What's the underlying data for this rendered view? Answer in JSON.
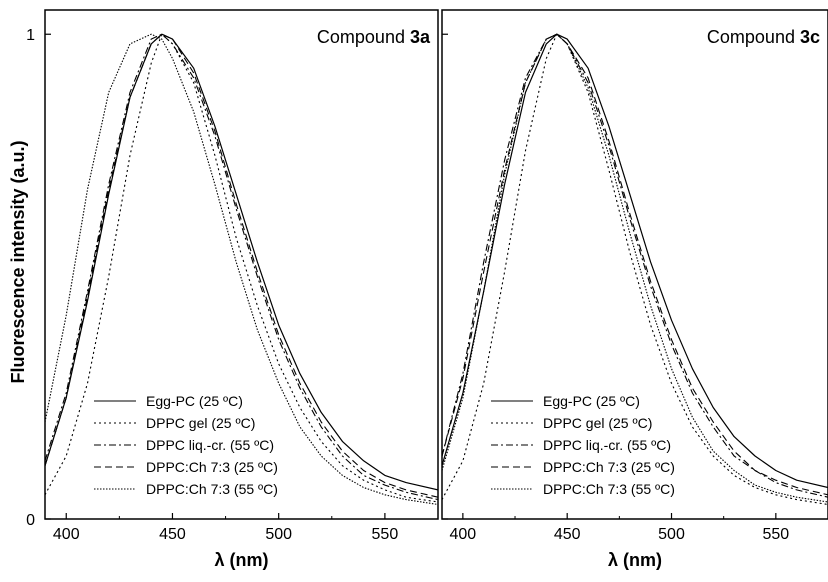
{
  "figure": {
    "ylabel": "Fluorescence intensity (a.u.)"
  },
  "chart_data": [
    {
      "type": "line",
      "title_prefix": "Compound ",
      "title_bold": "3a",
      "xlabel": "λ (nm)",
      "ylabel": "Fluorescence intensity (a.u.)",
      "xlim": [
        390,
        575
      ],
      "ylim": [
        0,
        1.05
      ],
      "xticks": [
        400,
        450,
        500,
        550
      ],
      "yticks": [
        0,
        1
      ],
      "legend_position": "bottom-left",
      "series": [
        {
          "name": "Egg-PC (25 ºC)",
          "style": "solid",
          "x": [
            390,
            400,
            410,
            420,
            430,
            440,
            445,
            450,
            460,
            470,
            480,
            490,
            500,
            510,
            520,
            530,
            540,
            550,
            560,
            575
          ],
          "y": [
            0.11,
            0.25,
            0.45,
            0.67,
            0.87,
            0.98,
            1.0,
            0.99,
            0.93,
            0.81,
            0.67,
            0.53,
            0.4,
            0.3,
            0.22,
            0.16,
            0.12,
            0.09,
            0.075,
            0.06
          ]
        },
        {
          "name": "DPPC gel (25 ºC)",
          "style": "dotted",
          "x": [
            390,
            400,
            410,
            420,
            430,
            440,
            445,
            450,
            460,
            470,
            480,
            490,
            500,
            510,
            520,
            530,
            540,
            550,
            560,
            575
          ],
          "y": [
            0.05,
            0.13,
            0.28,
            0.5,
            0.75,
            0.94,
            1.0,
            0.98,
            0.9,
            0.75,
            0.58,
            0.44,
            0.32,
            0.23,
            0.16,
            0.11,
            0.08,
            0.06,
            0.045,
            0.035
          ]
        },
        {
          "name": "DPPC liq.-cr. (55 ºC)",
          "style": "dashdot",
          "x": [
            390,
            400,
            410,
            420,
            430,
            440,
            445,
            450,
            460,
            470,
            480,
            490,
            500,
            510,
            520,
            530,
            540,
            550,
            560,
            575
          ],
          "y": [
            0.12,
            0.26,
            0.47,
            0.69,
            0.88,
            0.99,
            1.0,
            0.98,
            0.91,
            0.79,
            0.64,
            0.5,
            0.37,
            0.27,
            0.19,
            0.13,
            0.09,
            0.07,
            0.055,
            0.04
          ]
        },
        {
          "name": "DPPC:Ch 7:3 (25 ºC)",
          "style": "dashed",
          "x": [
            390,
            400,
            410,
            420,
            430,
            440,
            445,
            450,
            460,
            470,
            480,
            490,
            500,
            510,
            520,
            530,
            540,
            550,
            560,
            575
          ],
          "y": [
            0.11,
            0.25,
            0.46,
            0.68,
            0.87,
            0.98,
            1.0,
            0.99,
            0.92,
            0.8,
            0.65,
            0.51,
            0.38,
            0.28,
            0.2,
            0.14,
            0.1,
            0.075,
            0.06,
            0.045
          ]
        },
        {
          "name": "DPPC:Ch 7:3 (55 ºC)",
          "style": "finedot",
          "x": [
            390,
            400,
            410,
            420,
            430,
            440,
            445,
            450,
            460,
            470,
            480,
            490,
            500,
            510,
            520,
            530,
            540,
            550,
            560,
            575
          ],
          "y": [
            0.2,
            0.42,
            0.68,
            0.88,
            0.98,
            1.0,
            0.99,
            0.95,
            0.84,
            0.69,
            0.53,
            0.39,
            0.28,
            0.19,
            0.13,
            0.09,
            0.065,
            0.05,
            0.04,
            0.03
          ]
        }
      ]
    },
    {
      "type": "line",
      "title_prefix": "Compound ",
      "title_bold": "3c",
      "xlabel": "λ (nm)",
      "ylabel": "",
      "xlim": [
        390,
        575
      ],
      "ylim": [
        0,
        1.05
      ],
      "xticks": [
        400,
        450,
        500,
        550
      ],
      "yticks": [
        0,
        1
      ],
      "legend_position": "bottom-left",
      "series": [
        {
          "name": "Egg-PC (25 ºC)",
          "style": "solid",
          "x": [
            390,
            400,
            410,
            420,
            430,
            440,
            445,
            450,
            460,
            470,
            480,
            490,
            500,
            510,
            520,
            530,
            540,
            550,
            560,
            575
          ],
          "y": [
            0.11,
            0.26,
            0.47,
            0.69,
            0.88,
            0.98,
            1.0,
            0.99,
            0.93,
            0.81,
            0.67,
            0.53,
            0.41,
            0.31,
            0.23,
            0.17,
            0.13,
            0.1,
            0.08,
            0.065
          ]
        },
        {
          "name": "DPPC gel (25 ºC)",
          "style": "dotted",
          "x": [
            390,
            400,
            410,
            420,
            430,
            440,
            445,
            450,
            460,
            470,
            480,
            490,
            500,
            510,
            520,
            530,
            540,
            550,
            560,
            575
          ],
          "y": [
            0.04,
            0.12,
            0.28,
            0.51,
            0.76,
            0.95,
            1.0,
            0.98,
            0.88,
            0.72,
            0.55,
            0.4,
            0.28,
            0.19,
            0.13,
            0.09,
            0.065,
            0.05,
            0.04,
            0.03
          ]
        },
        {
          "name": "DPPC liq.-cr. (55 ºC)",
          "style": "dashdot",
          "x": [
            390,
            400,
            410,
            420,
            430,
            440,
            445,
            450,
            460,
            470,
            480,
            490,
            500,
            510,
            520,
            530,
            540,
            550,
            560,
            575
          ],
          "y": [
            0.13,
            0.3,
            0.53,
            0.74,
            0.91,
            0.99,
            1.0,
            0.98,
            0.9,
            0.77,
            0.62,
            0.48,
            0.36,
            0.26,
            0.19,
            0.13,
            0.1,
            0.075,
            0.06,
            0.045
          ]
        },
        {
          "name": "DPPC:Ch 7:3 (25 ºC)",
          "style": "dashed",
          "x": [
            390,
            400,
            410,
            420,
            430,
            440,
            445,
            450,
            460,
            470,
            480,
            490,
            500,
            510,
            520,
            530,
            540,
            550,
            560,
            575
          ],
          "y": [
            0.13,
            0.29,
            0.51,
            0.72,
            0.9,
            0.99,
            1.0,
            0.98,
            0.91,
            0.78,
            0.63,
            0.49,
            0.37,
            0.27,
            0.2,
            0.14,
            0.1,
            0.08,
            0.065,
            0.05
          ]
        },
        {
          "name": "DPPC:Ch 7:3 (55 ºC)",
          "style": "finedot",
          "x": [
            390,
            400,
            410,
            420,
            430,
            440,
            445,
            450,
            460,
            470,
            480,
            490,
            500,
            510,
            520,
            530,
            540,
            550,
            560,
            575
          ],
          "y": [
            0.1,
            0.25,
            0.47,
            0.71,
            0.9,
            0.99,
            1.0,
            0.98,
            0.89,
            0.75,
            0.59,
            0.44,
            0.31,
            0.21,
            0.14,
            0.1,
            0.07,
            0.055,
            0.045,
            0.035
          ]
        }
      ]
    }
  ]
}
